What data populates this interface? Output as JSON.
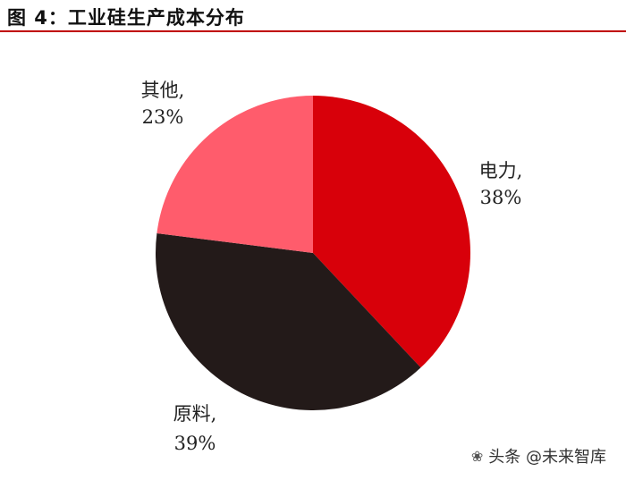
{
  "title": "图 4：工业硅生产成本分布",
  "watermark": {
    "text": "头条 @未来智库",
    "icon": "wechat-icon"
  },
  "chart_data": {
    "type": "pie",
    "title": "图 4：工业硅生产成本分布",
    "slices": [
      {
        "name": "电力",
        "value": 38,
        "label": "38%",
        "color": "#d8000a"
      },
      {
        "name": "原料",
        "value": 39,
        "label": "39%",
        "color": "#231a19"
      },
      {
        "name": "其他",
        "value": 23,
        "label": "23%",
        "color": "#ff5c6c"
      }
    ],
    "start_angle": "12 o'clock",
    "direction": "clockwise",
    "legend": "none"
  }
}
